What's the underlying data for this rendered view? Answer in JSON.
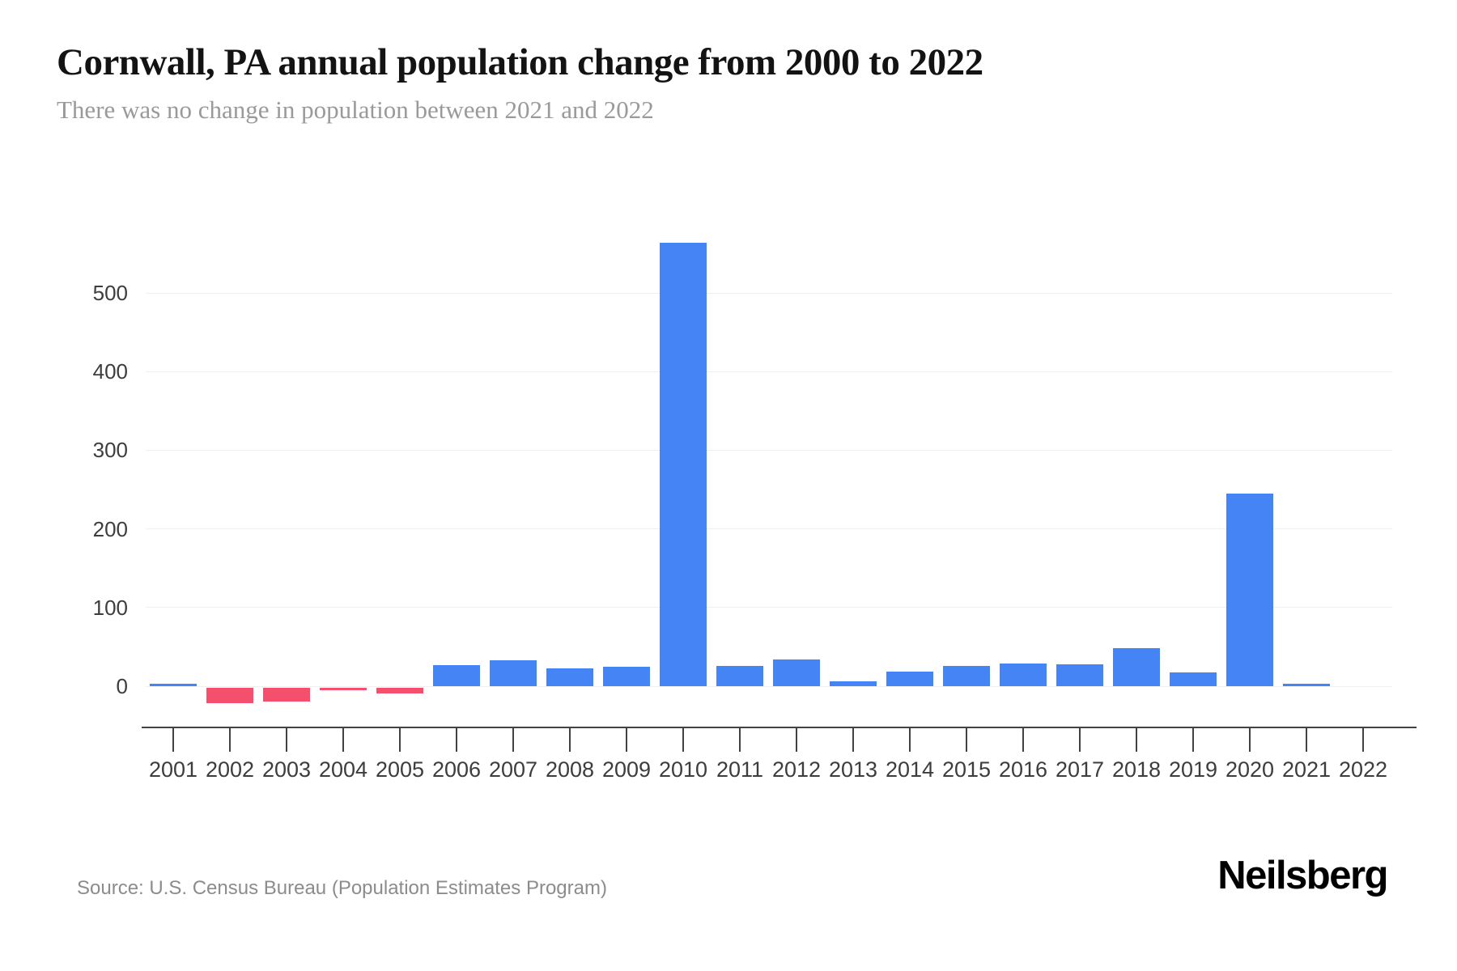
{
  "header": {
    "title": "Cornwall, PA annual population change from 2000 to 2022",
    "subtitle": "There was no change in population between 2021 and 2022"
  },
  "footer": {
    "source": "Source: U.S. Census Bureau (Population Estimates Program)",
    "brand": "Neilsberg"
  },
  "chart_data": {
    "type": "bar",
    "title": "Cornwall, PA annual population change from 2000 to 2022",
    "subtitle": "There was no change in population between 2021 and 2022",
    "xlabel": "",
    "ylabel": "",
    "categories": [
      "2001",
      "2002",
      "2003",
      "2004",
      "2005",
      "2006",
      "2007",
      "2008",
      "2009",
      "2010",
      "2011",
      "2012",
      "2013",
      "2014",
      "2015",
      "2016",
      "2017",
      "2018",
      "2019",
      "2020",
      "2021",
      "2022"
    ],
    "values": [
      3,
      -20,
      -18,
      -4,
      -8,
      27,
      33,
      23,
      25,
      564,
      26,
      34,
      6,
      19,
      26,
      29,
      28,
      48,
      17,
      245,
      3,
      0
    ],
    "yticks": [
      0,
      100,
      200,
      300,
      400,
      500
    ],
    "ylim": [
      -50,
      580
    ],
    "grid": true,
    "legend": "none",
    "colors": {
      "positive": "#4584f4",
      "negative": "#f4506e",
      "gridline": "#f0f0f0",
      "axis": "#424242",
      "tick_label": "#3d3d3d"
    }
  }
}
